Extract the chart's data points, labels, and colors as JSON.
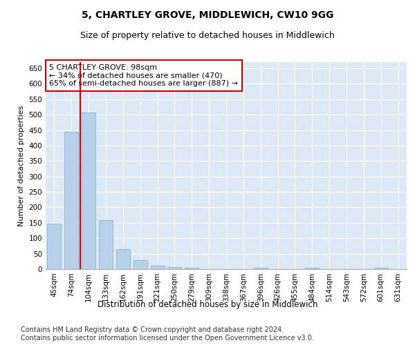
{
  "title": "5, CHARTLEY GROVE, MIDDLEWICH, CW10 9GG",
  "subtitle": "Size of property relative to detached houses in Middlewich",
  "xlabel": "Distribution of detached houses by size in Middlewich",
  "ylabel": "Number of detached properties",
  "categories": [
    "45sqm",
    "74sqm",
    "104sqm",
    "133sqm",
    "162sqm",
    "191sqm",
    "221sqm",
    "250sqm",
    "279sqm",
    "309sqm",
    "338sqm",
    "367sqm",
    "396sqm",
    "426sqm",
    "455sqm",
    "484sqm",
    "514sqm",
    "543sqm",
    "572sqm",
    "601sqm",
    "631sqm"
  ],
  "values": [
    148,
    445,
    507,
    158,
    65,
    30,
    12,
    7,
    5,
    0,
    0,
    0,
    5,
    0,
    0,
    5,
    0,
    0,
    0,
    5,
    0
  ],
  "bar_color": "#b8d0e8",
  "bar_edge_color": "#7aaace",
  "vline_color": "#cc0000",
  "annotation_text": "5 CHARTLEY GROVE: 98sqm\n← 34% of detached houses are smaller (470)\n65% of semi-detached houses are larger (887) →",
  "annotation_box_color": "#ffffff",
  "annotation_box_edge_color": "#cc0000",
  "ylim": [
    0,
    670
  ],
  "yticks": [
    0,
    50,
    100,
    150,
    200,
    250,
    300,
    350,
    400,
    450,
    500,
    550,
    600,
    650
  ],
  "plot_bg_color": "#dce9f5",
  "footer": "Contains HM Land Registry data © Crown copyright and database right 2024.\nContains public sector information licensed under the Open Government Licence v3.0.",
  "title_fontsize": 10,
  "subtitle_fontsize": 9,
  "xlabel_fontsize": 8.5,
  "ylabel_fontsize": 8,
  "tick_fontsize": 7.5,
  "annotation_fontsize": 8,
  "footer_fontsize": 7
}
